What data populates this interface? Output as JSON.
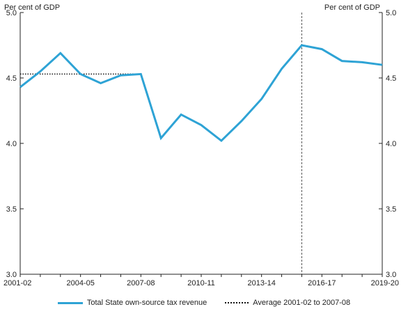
{
  "chart_data": {
    "type": "line",
    "left_unit": "Per cent of GDP",
    "right_unit": "Per cent of GDP",
    "ylim": [
      3.0,
      5.0
    ],
    "yticks": [
      "3.0",
      "3.5",
      "4.0",
      "4.5",
      "5.0"
    ],
    "ytick_values": [
      3.0,
      3.5,
      4.0,
      4.5,
      5.0
    ],
    "x": [
      "2001-02",
      "2002-03",
      "2003-04",
      "2004-05",
      "2005-06",
      "2006-07",
      "2007-08",
      "2008-09",
      "2009-10",
      "2010-11",
      "2011-12",
      "2012-13",
      "2013-14",
      "2014-15",
      "2015-16",
      "2016-17",
      "2017-18",
      "2018-19",
      "2019-20"
    ],
    "xtick_labels": [
      "2001-02",
      "2004-05",
      "2007-08",
      "2010-11",
      "2013-14",
      "2016-17",
      "2019-20"
    ],
    "series": [
      {
        "name": "Total State own-source tax revenue",
        "color": "#2ea3d5",
        "values": [
          4.43,
          4.55,
          4.69,
          4.53,
          4.46,
          4.52,
          4.53,
          4.04,
          4.22,
          4.14,
          4.02,
          4.17,
          4.34,
          4.57,
          4.75,
          4.72,
          4.63,
          4.62,
          4.6
        ]
      },
      {
        "name": "Average 2001-02 to 2007-08",
        "color": "#111111",
        "style": "dotted",
        "x_range": [
          "2001-02",
          "2007-08"
        ],
        "value": 4.53
      }
    ],
    "vertical_line": {
      "x": "2015-16",
      "style": "dashed",
      "color": "#555555"
    },
    "grid": false,
    "legend": "bottom"
  }
}
